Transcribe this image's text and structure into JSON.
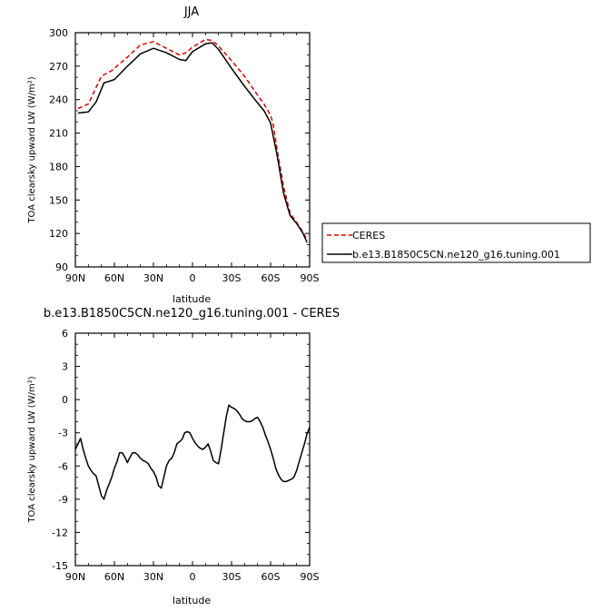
{
  "chart_data": [
    {
      "type": "line",
      "title": "JJA",
      "xlabel": "latitude",
      "ylabel": "TOA clearsky upward LW (W/m²)",
      "xlim": [
        90,
        -90
      ],
      "ylim": [
        90,
        300
      ],
      "xtick_labels": [
        "90N",
        "60N",
        "30N",
        "0",
        "30S",
        "60S",
        "90S"
      ],
      "ytick_labels": [
        "90",
        "120",
        "150",
        "180",
        "210",
        "240",
        "270",
        "300"
      ],
      "legend_position": "right-outside",
      "series": [
        {
          "name": "CERES",
          "color": "#dd0000",
          "dash": "dashed",
          "x": [
            88,
            80,
            70,
            62,
            50,
            40,
            30,
            20,
            10,
            5,
            0,
            -10,
            -15,
            -20,
            -30,
            -40,
            -50,
            -55,
            -60,
            -62,
            -65,
            -70,
            -75,
            -80,
            -85,
            -88
          ],
          "y": [
            232,
            236,
            261,
            266,
            278,
            289,
            292,
            286,
            280,
            282,
            287,
            294,
            293,
            288,
            275,
            261,
            244,
            236,
            226,
            218,
            195,
            162,
            138,
            130,
            121,
            114
          ]
        },
        {
          "name": "b.e13.B1850C5CN.ne120_g16.tuning.001",
          "color": "#000000",
          "dash": "solid",
          "x": [
            88,
            80,
            74,
            68,
            60,
            50,
            40,
            30,
            20,
            10,
            5,
            2,
            0,
            -10,
            -15,
            -20,
            -30,
            -40,
            -50,
            -55,
            -60,
            -65,
            -70,
            -75,
            -80,
            -85,
            -88
          ],
          "y": [
            228,
            229,
            238,
            255,
            258,
            270,
            281,
            286,
            282,
            276,
            275,
            280,
            283,
            290,
            291,
            285,
            268,
            252,
            237,
            230,
            219,
            190,
            156,
            136,
            129,
            120,
            112
          ]
        }
      ]
    },
    {
      "type": "line",
      "title": "b.e13.B1850C5CN.ne120_g16.tuning.001 - CERES",
      "xlabel": "latitude",
      "ylabel": "TOA clearsky upward LW (W/m²)",
      "xlim": [
        90,
        -90
      ],
      "ylim": [
        -15,
        6
      ],
      "xtick_labels": [
        "90N",
        "60N",
        "30N",
        "0",
        "30S",
        "60S",
        "90S"
      ],
      "ytick_labels": [
        "-15",
        "-12",
        "-9",
        "-6",
        "-3",
        "0",
        "3",
        "6"
      ],
      "series": [
        {
          "color": "#000000",
          "dash": "solid",
          "x": [
            90,
            88,
            86,
            84,
            82,
            80,
            78,
            76,
            74,
            72,
            70,
            68,
            66,
            64,
            62,
            60,
            58,
            56,
            54,
            52,
            50,
            48,
            46,
            44,
            42,
            40,
            38,
            36,
            34,
            32,
            30,
            28,
            26,
            24,
            22,
            20,
            18,
            16,
            14,
            12,
            10,
            8,
            6,
            4,
            2,
            0,
            -2,
            -4,
            -6,
            -8,
            -10,
            -12,
            -14,
            -16,
            -18,
            -20,
            -22,
            -24,
            -26,
            -28,
            -30,
            -32,
            -34,
            -36,
            -38,
            -40,
            -42,
            -44,
            -46,
            -48,
            -50,
            -52,
            -54,
            -56,
            -58,
            -60,
            -62,
            -64,
            -66,
            -68,
            -70,
            -72,
            -74,
            -76,
            -78,
            -80,
            -82,
            -84,
            -86,
            -88,
            -90
          ],
          "y": [
            -4.5,
            -4.0,
            -3.5,
            -4.5,
            -5.3,
            -6.0,
            -6.4,
            -6.7,
            -6.9,
            -7.8,
            -8.7,
            -9.0,
            -8.2,
            -7.6,
            -7.0,
            -6.2,
            -5.6,
            -4.8,
            -4.8,
            -5.2,
            -5.7,
            -5.2,
            -4.8,
            -4.8,
            -5.0,
            -5.3,
            -5.5,
            -5.6,
            -5.8,
            -6.2,
            -6.5,
            -7.0,
            -7.8,
            -8.0,
            -7.0,
            -6.0,
            -5.5,
            -5.3,
            -4.8,
            -4.0,
            -3.8,
            -3.6,
            -3.0,
            -2.9,
            -3.0,
            -3.5,
            -3.9,
            -4.2,
            -4.4,
            -4.5,
            -4.3,
            -4.0,
            -4.7,
            -5.5,
            -5.7,
            -5.8,
            -4.5,
            -3.0,
            -1.5,
            -0.5,
            -0.7,
            -0.8,
            -1.0,
            -1.3,
            -1.7,
            -1.9,
            -2.0,
            -2.0,
            -1.9,
            -1.7,
            -1.6,
            -2.0,
            -2.5,
            -3.2,
            -3.8,
            -4.5,
            -5.3,
            -6.2,
            -6.8,
            -7.2,
            -7.4,
            -7.4,
            -7.3,
            -7.2,
            -7.0,
            -6.4,
            -5.6,
            -4.8,
            -4.0,
            -3.1,
            -2.5
          ]
        }
      ]
    }
  ]
}
